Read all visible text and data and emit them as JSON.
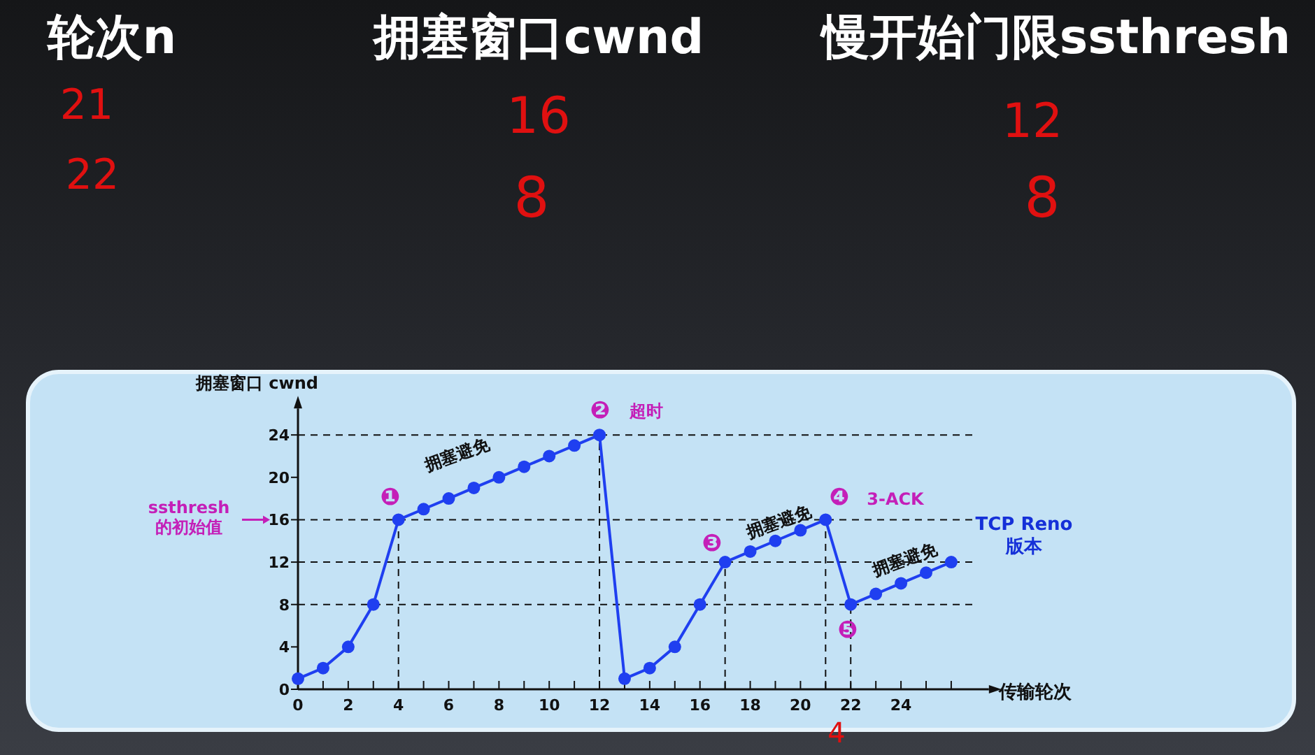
{
  "chart_data": {
    "type": "line",
    "xlabel": "传输轮次",
    "ylabel": "拥塞窗口  cwnd",
    "x": [
      0,
      1,
      2,
      3,
      4,
      5,
      6,
      7,
      8,
      9,
      10,
      11,
      12,
      13,
      14,
      15,
      16,
      17,
      18,
      19,
      20,
      21,
      22,
      23,
      24,
      25,
      26
    ],
    "series": [
      {
        "color": "#1f3ff0",
        "values": [
          1,
          2,
          4,
          8,
          16,
          17,
          18,
          19,
          20,
          21,
          22,
          23,
          24,
          1,
          2,
          4,
          8,
          12,
          13,
          14,
          15,
          16,
          8,
          9,
          10,
          11,
          12
        ]
      }
    ],
    "marker": "circle",
    "line_style": "solid",
    "grid": false,
    "xlim": [
      0,
      27.5
    ],
    "ylim": [
      0,
      26.5
    ],
    "xticks": [
      0,
      {
        "value": 1,
        "label": null
      },
      2,
      {
        "value": 3,
        "label": null
      },
      4,
      {
        "value": 5,
        "label": null
      },
      6,
      {
        "value": 7,
        "label": null
      },
      8,
      {
        "value": 9,
        "label": null
      },
      10,
      {
        "value": 11,
        "label": null
      },
      12,
      {
        "value": 13,
        "label": null
      },
      14,
      {
        "value": 15,
        "label": null
      },
      16,
      {
        "value": 17,
        "label": null
      },
      18,
      {
        "value": 19,
        "label": null
      },
      20,
      {
        "value": 21,
        "label": null
      },
      22,
      {
        "value": 23,
        "label": null
      },
      24,
      {
        "value": 25,
        "label": null
      },
      {
        "value": 26,
        "label": null
      }
    ],
    "yticks": [
      0,
      4,
      8,
      12,
      16,
      20,
      24
    ],
    "ref_lines": [
      {
        "axis": "y",
        "value": 24,
        "line_style": "dashed"
      },
      {
        "axis": "y",
        "value": 16,
        "line_style": "dashed"
      },
      {
        "axis": "y",
        "value": 12,
        "line_style": "dashed"
      },
      {
        "axis": "y",
        "value": 8,
        "line_style": "dashed"
      },
      {
        "axis": "x",
        "value": 4,
        "line_style": "dashed"
      },
      {
        "axis": "x",
        "value": 12,
        "line_style": "dashed"
      },
      {
        "axis": "x",
        "value": 17,
        "line_style": "dashed"
      },
      {
        "axis": "x",
        "value": 21,
        "line_style": "dashed"
      },
      {
        "axis": "x",
        "value": 22,
        "line_style": "dashed"
      }
    ],
    "annotations": [
      "轮次n",
      "拥塞窗口cwnd",
      "慢开始门限ssthresh",
      "21",
      "22",
      "16",
      "8",
      "12",
      "8",
      "4",
      "TCP Reno\n版本",
      "❶",
      "❷",
      "超时",
      "拥塞避免",
      "❸",
      "拥塞避免",
      "❹",
      "3-ACK",
      "拥塞避免",
      "❺",
      "ssthresh\n的初始值"
    ]
  }
}
